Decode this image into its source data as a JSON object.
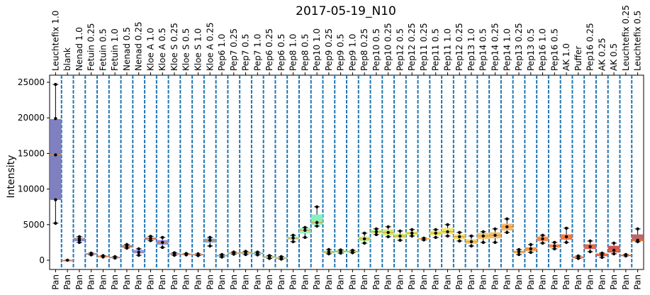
{
  "chart_data": {
    "type": "box",
    "title": "2017-05-19_N10",
    "ylabel": "Intensity",
    "xlabel": "",
    "ylim": [
      -1300,
      26000
    ],
    "yticks": [
      0,
      5000,
      10000,
      15000,
      20000,
      25000
    ],
    "grid": false,
    "bottom_label": "Pan",
    "categories": [
      "Leuchtefix 1.0",
      "blank",
      "Nenad 1.0",
      "Fetuin 0.25",
      "Fetuin 0.5",
      "Fetuin 1.0",
      "Nenad 0.5",
      "Nenad 0.25",
      "Kloe A 1.0",
      "Kloe A 0.5",
      "Kloe S 0.25",
      "Kloe S 0.5",
      "Kloe S 1.0",
      "Kloe A 0.25",
      "Pep6 1.0",
      "Pep7 0.25",
      "Pep7 0.5",
      "Pep7 1.0",
      "Pep6 0.25",
      "Pep6 0.5",
      "Pep8 1.0",
      "Pep8 0.5",
      "Pep10 1.0",
      "Pep9 0.25",
      "Pep9 0.5",
      "Pep9 1.0",
      "Pep8 0.25",
      "Pep10 0.5",
      "Pep10 0.25",
      "Pep12 0.5",
      "Pep12 0.25",
      "Pep11 0.25",
      "Pep11 0.5",
      "Pep11 1.0",
      "Pep12 0.25",
      "Pep13 1.0",
      "Pep14 0.5",
      "Pep14 0.25",
      "Pep14 1.0",
      "Pep13 0.25",
      "Pep13 0.5",
      "Pep16 1.0",
      "Pep16 0.5",
      "AK 1.0",
      "Puffer",
      "Pep16 0.25",
      "AK 0.25",
      "AK 0.5",
      "Leuchtefix 0.25",
      "Leuchtefix 0.5"
    ],
    "boxes": [
      {
        "q1": 8500,
        "median": 14800,
        "q3": 19800,
        "whislo": 5200,
        "whishi": 24700,
        "points": [
          5200,
          8500,
          14800,
          19900,
          24700
        ],
        "color": "#8080c0"
      },
      {
        "q1": -20,
        "median": 0,
        "q3": 20,
        "whislo": -30,
        "whishi": 30,
        "points": [
          0
        ],
        "color": "#9090d0"
      },
      {
        "q1": 2700,
        "median": 2950,
        "q3": 3100,
        "whislo": 2500,
        "whishi": 3300,
        "points": [
          2500,
          2800,
          3000,
          3300
        ],
        "color": "#8a8ad8"
      },
      {
        "q1": 800,
        "median": 900,
        "q3": 950,
        "whislo": 750,
        "whishi": 1000,
        "points": [
          750,
          900,
          1000
        ],
        "color": "#8f8fe0"
      },
      {
        "q1": 500,
        "median": 550,
        "q3": 600,
        "whislo": 450,
        "whishi": 650,
        "points": [
          450,
          550,
          650
        ],
        "color": "#8f8fe4"
      },
      {
        "q1": 350,
        "median": 400,
        "q3": 450,
        "whislo": 300,
        "whishi": 500,
        "points": [
          300,
          400,
          500
        ],
        "color": "#8f8fe8"
      },
      {
        "q1": 1800,
        "median": 1950,
        "q3": 2100,
        "whislo": 1700,
        "whishi": 2200,
        "points": [
          1700,
          2000,
          2200
        ],
        "color": "#8a8aec"
      },
      {
        "q1": 1000,
        "median": 1200,
        "q3": 1400,
        "whislo": 700,
        "whishi": 1600,
        "points": [
          700,
          1100,
          1600
        ],
        "color": "#9090f0"
      },
      {
        "q1": 2900,
        "median": 3050,
        "q3": 3150,
        "whislo": 2750,
        "whishi": 3350,
        "points": [
          2750,
          3050,
          3350
        ],
        "color": "#8080e8"
      },
      {
        "q1": 2200,
        "median": 2500,
        "q3": 2800,
        "whislo": 1800,
        "whishi": 3200,
        "points": [
          1800,
          2500,
          3200
        ],
        "color": "#8890f0"
      },
      {
        "q1": 800,
        "median": 900,
        "q3": 950,
        "whislo": 700,
        "whishi": 1050,
        "points": [
          700,
          900,
          1050
        ],
        "color": "#8aa0f0"
      },
      {
        "q1": 800,
        "median": 850,
        "q3": 900,
        "whislo": 750,
        "whishi": 950,
        "points": [
          750,
          850,
          950
        ],
        "color": "#90a8f0"
      },
      {
        "q1": 700,
        "median": 780,
        "q3": 850,
        "whislo": 650,
        "whishi": 900,
        "points": [
          650,
          780,
          900
        ],
        "color": "#90b0f0"
      },
      {
        "q1": 2500,
        "median": 2800,
        "q3": 3000,
        "whislo": 2000,
        "whishi": 3200,
        "points": [
          2000,
          2800,
          3200
        ],
        "color": "#70b0f0"
      },
      {
        "q1": 550,
        "median": 650,
        "q3": 700,
        "whislo": 450,
        "whishi": 800,
        "points": [
          450,
          650,
          800
        ],
        "color": "#80c8f0"
      },
      {
        "q1": 900,
        "median": 1000,
        "q3": 1050,
        "whislo": 850,
        "whishi": 1150,
        "points": [
          850,
          1000,
          1150
        ],
        "color": "#88d0f0"
      },
      {
        "q1": 900,
        "median": 1050,
        "q3": 1150,
        "whislo": 800,
        "whishi": 1250,
        "points": [
          800,
          1050,
          1250
        ],
        "color": "#90d8f0"
      },
      {
        "q1": 850,
        "median": 950,
        "q3": 1050,
        "whislo": 750,
        "whishi": 1150,
        "points": [
          750,
          950,
          1150
        ],
        "color": "#98e0f0"
      },
      {
        "q1": 350,
        "median": 450,
        "q3": 550,
        "whislo": 250,
        "whishi": 650,
        "points": [
          250,
          450,
          650
        ],
        "color": "#90e8e8"
      },
      {
        "q1": 200,
        "median": 300,
        "q3": 400,
        "whislo": 150,
        "whishi": 500,
        "points": [
          150,
          300,
          500
        ],
        "color": "#90f0e0"
      },
      {
        "q1": 2900,
        "median": 3100,
        "q3": 3300,
        "whislo": 2600,
        "whishi": 3500,
        "points": [
          2600,
          3100,
          3500
        ],
        "color": "#a0f0d8"
      },
      {
        "q1": 3800,
        "median": 4200,
        "q3": 4500,
        "whislo": 3200,
        "whishi": 4600,
        "points": [
          3200,
          4200,
          4600
        ],
        "color": "#98f0c8"
      },
      {
        "q1": 5000,
        "median": 5300,
        "q3": 6400,
        "whislo": 4800,
        "whishi": 7500,
        "points": [
          4800,
          5300,
          7500
        ],
        "color": "#88f0c0"
      },
      {
        "q1": 1000,
        "median": 1150,
        "q3": 1300,
        "whislo": 900,
        "whishi": 1500,
        "points": [
          900,
          1150,
          1500
        ],
        "color": "#98f0b0"
      },
      {
        "q1": 1100,
        "median": 1250,
        "q3": 1350,
        "whislo": 1000,
        "whishi": 1450,
        "points": [
          1000,
          1250,
          1450
        ],
        "color": "#a8f0a8"
      },
      {
        "q1": 1100,
        "median": 1200,
        "q3": 1300,
        "whislo": 1050,
        "whishi": 1400,
        "points": [
          1050,
          1200,
          1400
        ],
        "color": "#b0f0a0"
      },
      {
        "q1": 2700,
        "median": 3000,
        "q3": 3300,
        "whislo": 2400,
        "whishi": 3800,
        "points": [
          2400,
          3000,
          3800
        ],
        "color": "#b8f090"
      },
      {
        "q1": 3800,
        "median": 4000,
        "q3": 4200,
        "whislo": 3600,
        "whishi": 4400,
        "points": [
          3600,
          4000,
          4400
        ],
        "color": "#c0f088"
      },
      {
        "q1": 3500,
        "median": 3900,
        "q3": 4300,
        "whislo": 3300,
        "whishi": 4700,
        "points": [
          3300,
          3900,
          4700
        ],
        "color": "#c8f080"
      },
      {
        "q1": 3100,
        "median": 3400,
        "q3": 3700,
        "whislo": 2800,
        "whishi": 4100,
        "points": [
          2800,
          3400,
          4100
        ],
        "color": "#d0f078"
      },
      {
        "q1": 3600,
        "median": 3800,
        "q3": 4000,
        "whislo": 3400,
        "whishi": 4300,
        "points": [
          3400,
          3800,
          4300
        ],
        "color": "#d8f070"
      },
      {
        "q1": 2900,
        "median": 3000,
        "q3": 3050,
        "whislo": 2850,
        "whishi": 3100,
        "points": [
          2850,
          3000,
          3100
        ],
        "color": "#e0f070"
      },
      {
        "q1": 3500,
        "median": 3800,
        "q3": 4100,
        "whislo": 3200,
        "whishi": 4300,
        "points": [
          3200,
          3800,
          4300
        ],
        "color": "#e8f070"
      },
      {
        "q1": 3700,
        "median": 4000,
        "q3": 4500,
        "whislo": 3400,
        "whishi": 5000,
        "points": [
          3400,
          4000,
          5000
        ],
        "color": "#f0e870"
      },
      {
        "q1": 3000,
        "median": 3300,
        "q3": 3600,
        "whislo": 2700,
        "whishi": 3900,
        "points": [
          2700,
          3300,
          3900
        ],
        "color": "#f0e070"
      },
      {
        "q1": 2300,
        "median": 2600,
        "q3": 2900,
        "whislo": 2000,
        "whishi": 3400,
        "points": [
          2000,
          2600,
          3400
        ],
        "color": "#f0d070"
      },
      {
        "q1": 3000,
        "median": 3400,
        "q3": 3800,
        "whislo": 2500,
        "whishi": 4000,
        "points": [
          2500,
          3400,
          4000
        ],
        "color": "#f0c878"
      },
      {
        "q1": 3100,
        "median": 3500,
        "q3": 3900,
        "whislo": 2500,
        "whishi": 4400,
        "points": [
          2500,
          3500,
          4400
        ],
        "color": "#f0c070"
      },
      {
        "q1": 4200,
        "median": 4700,
        "q3": 5100,
        "whislo": 3900,
        "whishi": 5800,
        "points": [
          3900,
          4700,
          5800
        ],
        "color": "#f0b870"
      },
      {
        "q1": 1000,
        "median": 1200,
        "q3": 1300,
        "whislo": 800,
        "whishi": 1500,
        "points": [
          800,
          1200,
          1500
        ],
        "color": "#f0b060"
      },
      {
        "q1": 1300,
        "median": 1600,
        "q3": 1800,
        "whislo": 1100,
        "whishi": 2200,
        "points": [
          1100,
          1600,
          2200
        ],
        "color": "#f0a060"
      },
      {
        "q1": 2700,
        "median": 3000,
        "q3": 3300,
        "whislo": 2400,
        "whishi": 3500,
        "points": [
          2400,
          3000,
          3500
        ],
        "color": "#f09060"
      },
      {
        "q1": 1800,
        "median": 2000,
        "q3": 2200,
        "whislo": 1600,
        "whishi": 2500,
        "points": [
          1600,
          2000,
          2500
        ],
        "color": "#f08858"
      },
      {
        "q1": 2900,
        "median": 3300,
        "q3": 3600,
        "whislo": 2500,
        "whishi": 4500,
        "points": [
          2500,
          3300,
          4500
        ],
        "color": "#f07850"
      },
      {
        "q1": 300,
        "median": 400,
        "q3": 500,
        "whislo": 250,
        "whishi": 600,
        "points": [
          250,
          400,
          600
        ],
        "color": "#f07060"
      },
      {
        "q1": 1600,
        "median": 1900,
        "q3": 2200,
        "whislo": 1200,
        "whishi": 2700,
        "points": [
          1200,
          1900,
          2700
        ],
        "color": "#e06060"
      },
      {
        "q1": 600,
        "median": 750,
        "q3": 900,
        "whislo": 400,
        "whishi": 1000,
        "points": [
          400,
          750,
          1000
        ],
        "color": "#e05858"
      },
      {
        "q1": 1100,
        "median": 1400,
        "q3": 2000,
        "whislo": 900,
        "whishi": 2400,
        "points": [
          900,
          1400,
          2400
        ],
        "color": "#d05858"
      },
      {
        "q1": 650,
        "median": 700,
        "q3": 750,
        "whislo": 600,
        "whishi": 800,
        "points": [
          600,
          700,
          800
        ],
        "color": "#c86060"
      },
      {
        "q1": 2700,
        "median": 2800,
        "q3": 3600,
        "whislo": 2600,
        "whishi": 4400,
        "points": [
          2600,
          2800,
          4400
        ],
        "color": "#c06868"
      }
    ]
  }
}
